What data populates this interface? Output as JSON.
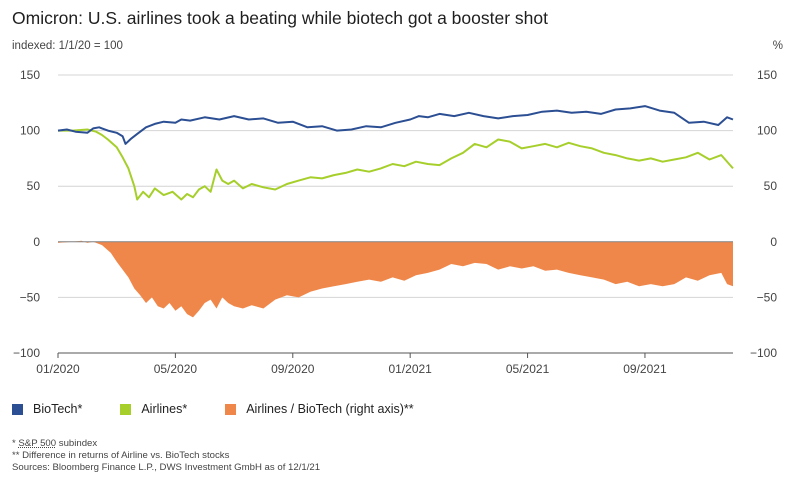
{
  "chart_data": {
    "type": "line",
    "title": "Omicron: U.S. airlines took a beating while biotech got a booster shot",
    "left_axis_label": "indexed: 1/1/20 = 100",
    "right_axis_label": "%",
    "y_ticks": [
      "150",
      "100",
      "50",
      "0",
      "−50",
      "−100"
    ],
    "y_tick_values": [
      150,
      100,
      50,
      0,
      -50,
      -100
    ],
    "ylim": [
      -100,
      150
    ],
    "x_ticks": [
      "01/2020",
      "05/2020",
      "09/2020",
      "01/2021",
      "05/2021",
      "09/2021"
    ],
    "x_tick_values": [
      0,
      4,
      8,
      12,
      16,
      20
    ],
    "xlim": [
      0,
      23
    ],
    "series": [
      {
        "name": "BioTech*",
        "type": "line",
        "color": "#2c4f93",
        "x": [
          0,
          0.3,
          0.6,
          1.0,
          1.2,
          1.4,
          1.5,
          1.7,
          2.0,
          2.2,
          2.3,
          2.5,
          2.7,
          3.0,
          3.3,
          3.6,
          4.0,
          4.2,
          4.5,
          5.0,
          5.5,
          6.0,
          6.5,
          7.0,
          7.5,
          8.0,
          8.5,
          9.0,
          9.5,
          10.0,
          10.5,
          11.0,
          11.5,
          12.0,
          12.3,
          12.6,
          13.0,
          13.5,
          14.0,
          14.5,
          15.0,
          15.5,
          16.0,
          16.5,
          17.0,
          17.5,
          18.0,
          18.5,
          19.0,
          19.5,
          20.0,
          20.5,
          21.0,
          21.5,
          22.0,
          22.5,
          22.8,
          23.0
        ],
        "values": [
          100,
          101,
          99,
          98,
          102,
          103,
          102,
          100,
          98,
          95,
          88,
          93,
          97,
          103,
          106,
          108,
          107,
          110,
          109,
          112,
          110,
          113,
          110,
          111,
          107,
          108,
          103,
          104,
          100,
          101,
          104,
          103,
          107,
          110,
          113,
          112,
          115,
          113,
          116,
          113,
          111,
          113,
          114,
          117,
          118,
          116,
          117,
          115,
          119,
          120,
          122,
          118,
          116,
          107,
          108,
          105,
          112,
          110
        ]
      },
      {
        "name": "Airlines*",
        "type": "line",
        "color": "#a6cf2b",
        "x": [
          0,
          0.5,
          1.0,
          1.3,
          1.5,
          1.7,
          2.0,
          2.2,
          2.4,
          2.6,
          2.7,
          2.9,
          3.1,
          3.3,
          3.6,
          3.9,
          4.2,
          4.4,
          4.6,
          4.8,
          5.0,
          5.2,
          5.4,
          5.6,
          5.8,
          6.0,
          6.3,
          6.6,
          7.0,
          7.4,
          7.8,
          8.2,
          8.6,
          9.0,
          9.4,
          9.8,
          10.2,
          10.6,
          11.0,
          11.4,
          11.8,
          12.2,
          12.6,
          13.0,
          13.4,
          13.8,
          14.2,
          14.6,
          15.0,
          15.4,
          15.8,
          16.2,
          16.6,
          17.0,
          17.4,
          17.8,
          18.2,
          18.6,
          19.0,
          19.4,
          19.8,
          20.2,
          20.6,
          21.0,
          21.4,
          21.8,
          22.2,
          22.6,
          23.0
        ],
        "values": [
          100,
          100,
          101,
          99,
          96,
          92,
          85,
          76,
          66,
          50,
          38,
          45,
          40,
          48,
          42,
          45,
          38,
          43,
          40,
          47,
          50,
          45,
          65,
          55,
          52,
          55,
          48,
          52,
          49,
          47,
          52,
          55,
          58,
          57,
          60,
          62,
          65,
          63,
          66,
          70,
          68,
          72,
          70,
          69,
          75,
          80,
          88,
          85,
          92,
          90,
          84,
          86,
          88,
          85,
          89,
          86,
          84,
          80,
          78,
          75,
          73,
          75,
          72,
          74,
          76,
          80,
          74,
          78,
          66
        ]
      },
      {
        "name": "Airlines / BioTech (right axis)**",
        "type": "area",
        "color": "#f0874a",
        "x": [
          0,
          0.5,
          0.8,
          1.0,
          1.2,
          1.5,
          1.8,
          2.0,
          2.2,
          2.4,
          2.6,
          2.8,
          3.0,
          3.2,
          3.4,
          3.6,
          3.8,
          4.0,
          4.2,
          4.4,
          4.6,
          4.8,
          5.0,
          5.2,
          5.4,
          5.6,
          5.8,
          6.0,
          6.3,
          6.6,
          7.0,
          7.4,
          7.8,
          8.2,
          8.6,
          9.0,
          9.4,
          9.8,
          10.2,
          10.6,
          11.0,
          11.4,
          11.8,
          12.2,
          12.6,
          13.0,
          13.4,
          13.8,
          14.2,
          14.6,
          15.0,
          15.4,
          15.8,
          16.2,
          16.6,
          17.0,
          17.4,
          17.8,
          18.2,
          18.6,
          19.0,
          19.4,
          19.8,
          20.2,
          20.6,
          21.0,
          21.4,
          21.8,
          22.2,
          22.6,
          22.8,
          23.0
        ],
        "values": [
          -1,
          0,
          1,
          -1,
          0,
          -3,
          -10,
          -18,
          -25,
          -32,
          -42,
          -48,
          -55,
          -50,
          -58,
          -60,
          -55,
          -62,
          -58,
          -65,
          -68,
          -62,
          -55,
          -52,
          -60,
          -50,
          -55,
          -58,
          -60,
          -57,
          -60,
          -52,
          -48,
          -50,
          -45,
          -42,
          -40,
          -38,
          -36,
          -34,
          -36,
          -32,
          -35,
          -30,
          -28,
          -25,
          -20,
          -22,
          -19,
          -20,
          -25,
          -22,
          -24,
          -22,
          -26,
          -25,
          -28,
          -30,
          -32,
          -34,
          -38,
          -36,
          -40,
          -38,
          -40,
          -38,
          -32,
          -35,
          -30,
          -28,
          -38,
          -40
        ]
      }
    ]
  },
  "legend": {
    "items": [
      {
        "label": "BioTech*",
        "color": "#2c4f93"
      },
      {
        "label": "Airlines*",
        "color": "#a6cf2b"
      },
      {
        "label": "Airlines / BioTech (right axis)**",
        "color": "#f0874a"
      }
    ]
  },
  "notes": {
    "note1_prefix": "* ",
    "note1_link": "S&P 500",
    "note1_suffix": " subindex",
    "note2": "** Difference in returns of Airline vs. BioTech stocks",
    "note3": "Sources: Bloomberg Finance L.P., DWS Investment GmbH as of 12/1/21"
  }
}
